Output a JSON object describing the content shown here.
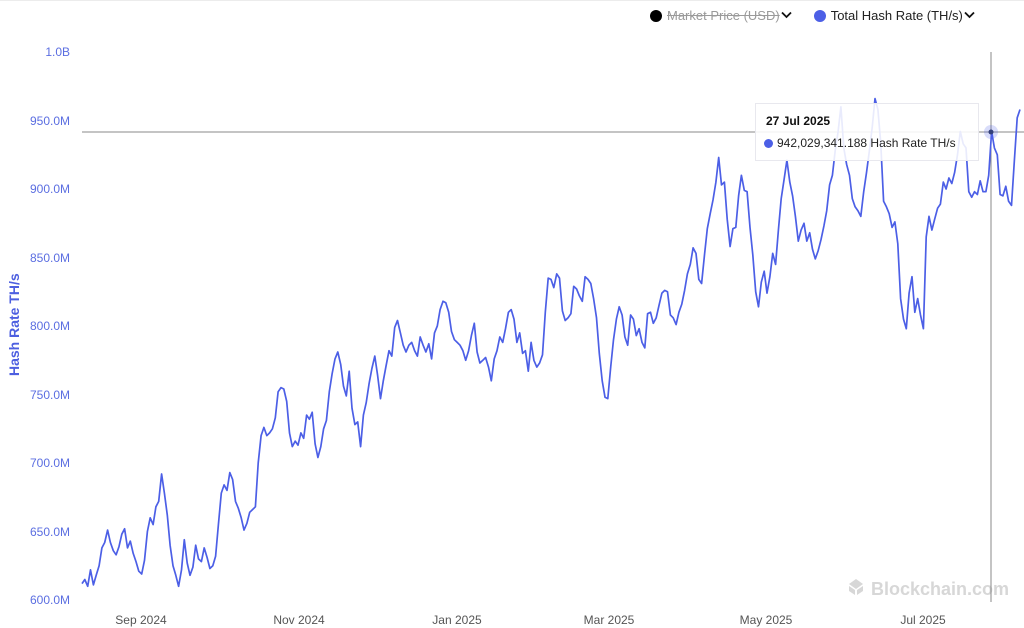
{
  "legend": {
    "items": [
      {
        "label": "Market Price (USD)",
        "color": "#000000",
        "enabled": false,
        "chevron": "chevron-down"
      },
      {
        "label": "Total Hash Rate (TH/s)",
        "color": "#4c5fe6",
        "enabled": true,
        "chevron": "chevron-down"
      }
    ]
  },
  "y_axis": {
    "label": "Hash Rate TH/s",
    "ticks": [
      "1.0B",
      "950.0M",
      "900.0M",
      "850.0M",
      "800.0M",
      "750.0M",
      "700.0M",
      "650.0M",
      "600.0M"
    ]
  },
  "x_axis": {
    "ticks": [
      "Sep 2024",
      "Nov 2024",
      "Jan 2025",
      "Mar 2025",
      "May 2025",
      "Jul 2025"
    ]
  },
  "tooltip": {
    "date": "27 Jul 2025",
    "value_text": "942,029,341.188 Hash Rate TH/s",
    "color": "#4c5fe6"
  },
  "watermark": {
    "text": "Blockchain.com"
  },
  "colors": {
    "line": "#4c5fe6",
    "axis_text": "#5b6ee1",
    "crosshair": "#888888"
  },
  "chart_data": {
    "type": "line",
    "title": "",
    "xlabel": "",
    "ylabel": "Hash Rate TH/s",
    "ylim": [
      600000000,
      1000000000
    ],
    "x_tick_labels": [
      "Sep 2024",
      "Nov 2024",
      "Jan 2025",
      "Mar 2025",
      "May 2025",
      "Jul 2025"
    ],
    "y_tick_labels": [
      "600.0M",
      "650.0M",
      "700.0M",
      "750.0M",
      "800.0M",
      "850.0M",
      "900.0M",
      "950.0M",
      "1.0B"
    ],
    "grid": false,
    "legend_position": "top-right",
    "series": [
      {
        "name": "Total Hash Rate (TH/s)",
        "x_range": [
          "Aug 2024",
          "Aug 2025"
        ],
        "approx_values_M": [
          612,
          615,
          610,
          622,
          611,
          618,
          625,
          638,
          642,
          651,
          642,
          636,
          633,
          639,
          648,
          652,
          638,
          643,
          634,
          628,
          621,
          619,
          629,
          650,
          660,
          655,
          668,
          672,
          692,
          678,
          662,
          640,
          625,
          618,
          610,
          622,
          644,
          627,
          618,
          624,
          640,
          630,
          628,
          638,
          631,
          623,
          625,
          632,
          655,
          678,
          684,
          680,
          693,
          688,
          672,
          667,
          660,
          651,
          656,
          664,
          666,
          668,
          700,
          720,
          726,
          720,
          722,
          725,
          733,
          752,
          755,
          754,
          745,
          722,
          712,
          716,
          713,
          722,
          718,
          735,
          732,
          737,
          714,
          704,
          712,
          725,
          731,
          752,
          765,
          776,
          781,
          772,
          756,
          749,
          767,
          740,
          728,
          730,
          712,
          735,
          744,
          758,
          769,
          778,
          764,
          747,
          760,
          771,
          782,
          778,
          799,
          804,
          795,
          786,
          781,
          786,
          788,
          782,
          778,
          792,
          786,
          781,
          787,
          776,
          795,
          800,
          812,
          818,
          817,
          810,
          796,
          790,
          788,
          786,
          782,
          775,
          782,
          793,
          802,
          781,
          773,
          775,
          777,
          770,
          760,
          776,
          782,
          792,
          788,
          798,
          810,
          812,
          805,
          788,
          795,
          780,
          782,
          767,
          788,
          775,
          770,
          773,
          779,
          810,
          835,
          834,
          828,
          838,
          835,
          811,
          804,
          806,
          809,
          829,
          827,
          822,
          818,
          836,
          834,
          831,
          820,
          806,
          780,
          760,
          748,
          747,
          770,
          790,
          805,
          814,
          808,
          792,
          786,
          808,
          805,
          793,
          798,
          788,
          784,
          809,
          810,
          802,
          806,
          815,
          824,
          826,
          825,
          808,
          806,
          801,
          810,
          816,
          826,
          838,
          845,
          857,
          853,
          834,
          831,
          852,
          871,
          882,
          892,
          905,
          923,
          903,
          905,
          878,
          858,
          871,
          872,
          895,
          910,
          899,
          898,
          872,
          852,
          825,
          814,
          832,
          840,
          824,
          836,
          853,
          845,
          870,
          893,
          907,
          921,
          905,
          895,
          880,
          862,
          870,
          875,
          862,
          868,
          856,
          849,
          855,
          863,
          873,
          884,
          903,
          910,
          928,
          942,
          960,
          930,
          918,
          910,
          893,
          887,
          884,
          880,
          898,
          912,
          928,
          945,
          966,
          958,
          934,
          891,
          887,
          882,
          872,
          876,
          860,
          820,
          805,
          798,
          824,
          836,
          810,
          820,
          808,
          798,
          865,
          880,
          870,
          878,
          886,
          889,
          905,
          900,
          908,
          904,
          912,
          925,
          942,
          933,
          930,
          898,
          894,
          898,
          896,
          906,
          898,
          898,
          910,
          942,
          930,
          925,
          896,
          895,
          902,
          891,
          888,
          920,
          952,
          958
        ]
      }
    ],
    "annotations": [
      {
        "type": "tooltip",
        "date": "27 Jul 2025",
        "value": 942029341.188
      }
    ]
  }
}
